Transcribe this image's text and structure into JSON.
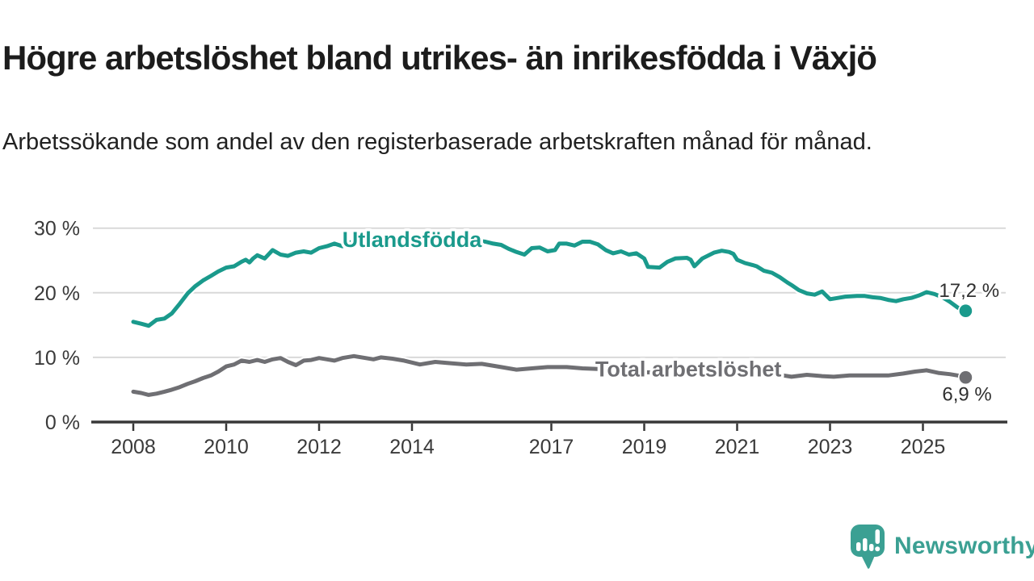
{
  "title": "Högre arbetslöshet bland utrikes- än inrikesfödda i Växjö",
  "subtitle": "Arbetssökande som andel av den registerbaserade arbetskraften månad för månad.",
  "branding": {
    "logo_text": "Newsworthy",
    "logo_color": "#3ba093",
    "logo_icon": "speech-bubble-bar-chart-icon"
  },
  "chart_data": {
    "type": "line",
    "title": "Högre arbetslöshet bland utrikes- än inrikesfödda i Växjö",
    "subtitle": "Arbetssökande som andel av den registerbaserade arbetskraften månad för månad.",
    "unit": "%",
    "x_axis": {
      "tick_labels": [
        "2008",
        "2010",
        "2012",
        "2014",
        "2017",
        "2019",
        "2021",
        "2023",
        "2025"
      ],
      "tick_years": [
        2008,
        2010,
        2012,
        2014,
        2017,
        2019,
        2021,
        2023,
        2025
      ],
      "range_years": [
        2007.1,
        2026.8
      ]
    },
    "y_axis": {
      "tick_labels": [
        "0 %",
        "10 %",
        "20 %",
        "30 %"
      ],
      "tick_values": [
        0,
        10,
        20,
        30
      ],
      "range": [
        0,
        33
      ],
      "grid": true
    },
    "styles": {
      "grid_color": "#d9d9d9",
      "axis_color": "#383838",
      "tick_label_color": "#3a3a3a",
      "value_label_color": "#303030"
    },
    "series": [
      {
        "name": "Utlandsfödda",
        "color": "#1a9a8c",
        "end_value_label": "17,2 %",
        "end_value": 17.2,
        "label_anchor": [
          2014.0,
          28.2
        ],
        "points": [
          [
            2008.0,
            15.5
          ],
          [
            2008.17,
            15.2
          ],
          [
            2008.33,
            14.9
          ],
          [
            2008.5,
            15.8
          ],
          [
            2008.67,
            16.0
          ],
          [
            2008.83,
            16.8
          ],
          [
            2009.0,
            18.3
          ],
          [
            2009.17,
            19.9
          ],
          [
            2009.33,
            21.0
          ],
          [
            2009.5,
            21.9
          ],
          [
            2009.67,
            22.6
          ],
          [
            2009.83,
            23.3
          ],
          [
            2010.0,
            23.9
          ],
          [
            2010.17,
            24.1
          ],
          [
            2010.33,
            24.8
          ],
          [
            2010.42,
            25.1
          ],
          [
            2010.5,
            24.7
          ],
          [
            2010.58,
            25.3
          ],
          [
            2010.67,
            25.8
          ],
          [
            2010.83,
            25.3
          ],
          [
            2011.0,
            26.6
          ],
          [
            2011.17,
            25.9
          ],
          [
            2011.33,
            25.7
          ],
          [
            2011.5,
            26.2
          ],
          [
            2011.67,
            26.4
          ],
          [
            2011.83,
            26.2
          ],
          [
            2012.0,
            26.9
          ],
          [
            2012.17,
            27.2
          ],
          [
            2012.33,
            27.6
          ],
          [
            2012.5,
            27.2
          ],
          [
            2012.67,
            27.8
          ],
          [
            2012.83,
            28.0
          ],
          [
            2013.0,
            28.2
          ],
          [
            2013.25,
            28.0
          ],
          [
            2013.5,
            28.3
          ],
          [
            2013.75,
            28.1
          ],
          [
            2014.0,
            28.2
          ],
          [
            2014.17,
            27.2
          ],
          [
            2014.33,
            27.9
          ],
          [
            2014.58,
            28.2
          ],
          [
            2014.83,
            28.0
          ],
          [
            2015.08,
            28.3
          ],
          [
            2015.33,
            28.1
          ],
          [
            2015.58,
            27.9
          ],
          [
            2015.75,
            27.6
          ],
          [
            2015.92,
            27.4
          ],
          [
            2016.08,
            26.8
          ],
          [
            2016.25,
            26.3
          ],
          [
            2016.42,
            25.9
          ],
          [
            2016.58,
            26.9
          ],
          [
            2016.75,
            27.0
          ],
          [
            2016.92,
            26.4
          ],
          [
            2017.08,
            26.6
          ],
          [
            2017.17,
            27.6
          ],
          [
            2017.33,
            27.6
          ],
          [
            2017.5,
            27.3
          ],
          [
            2017.67,
            27.9
          ],
          [
            2017.83,
            27.9
          ],
          [
            2018.0,
            27.5
          ],
          [
            2018.17,
            26.6
          ],
          [
            2018.33,
            26.1
          ],
          [
            2018.5,
            26.4
          ],
          [
            2018.67,
            25.9
          ],
          [
            2018.83,
            26.1
          ],
          [
            2019.0,
            25.3
          ],
          [
            2019.08,
            24.0
          ],
          [
            2019.33,
            23.9
          ],
          [
            2019.5,
            24.8
          ],
          [
            2019.67,
            25.3
          ],
          [
            2019.92,
            25.4
          ],
          [
            2020.0,
            25.1
          ],
          [
            2020.08,
            24.1
          ],
          [
            2020.25,
            25.3
          ],
          [
            2020.5,
            26.2
          ],
          [
            2020.67,
            26.5
          ],
          [
            2020.83,
            26.3
          ],
          [
            2020.92,
            26.0
          ],
          [
            2021.0,
            25.1
          ],
          [
            2021.17,
            24.6
          ],
          [
            2021.33,
            24.3
          ],
          [
            2021.42,
            24.1
          ],
          [
            2021.58,
            23.4
          ],
          [
            2021.75,
            23.1
          ],
          [
            2021.92,
            22.4
          ],
          [
            2022.08,
            21.6
          ],
          [
            2022.17,
            21.2
          ],
          [
            2022.33,
            20.4
          ],
          [
            2022.5,
            19.9
          ],
          [
            2022.67,
            19.7
          ],
          [
            2022.83,
            20.2
          ],
          [
            2023.0,
            19.0
          ],
          [
            2023.17,
            19.2
          ],
          [
            2023.33,
            19.4
          ],
          [
            2023.58,
            19.5
          ],
          [
            2023.75,
            19.5
          ],
          [
            2023.92,
            19.3
          ],
          [
            2024.08,
            19.2
          ],
          [
            2024.25,
            18.9
          ],
          [
            2024.42,
            18.7
          ],
          [
            2024.58,
            19.0
          ],
          [
            2024.75,
            19.2
          ],
          [
            2024.92,
            19.6
          ],
          [
            2025.08,
            20.1
          ],
          [
            2025.25,
            19.8
          ],
          [
            2025.42,
            19.3
          ],
          [
            2025.58,
            18.6
          ],
          [
            2025.75,
            17.7
          ],
          [
            2025.92,
            17.2
          ]
        ]
      },
      {
        "name": "Total arbetslöshet",
        "color": "#6f6f73",
        "end_value_label": "6,9 %",
        "end_value": 6.9,
        "label_anchor": [
          2019.95,
          8.2
        ],
        "points": [
          [
            2008.0,
            4.7
          ],
          [
            2008.17,
            4.5
          ],
          [
            2008.33,
            4.2
          ],
          [
            2008.5,
            4.4
          ],
          [
            2008.67,
            4.7
          ],
          [
            2008.83,
            5.0
          ],
          [
            2009.0,
            5.4
          ],
          [
            2009.17,
            5.9
          ],
          [
            2009.33,
            6.3
          ],
          [
            2009.5,
            6.8
          ],
          [
            2009.67,
            7.2
          ],
          [
            2009.83,
            7.8
          ],
          [
            2010.0,
            8.6
          ],
          [
            2010.17,
            8.9
          ],
          [
            2010.33,
            9.5
          ],
          [
            2010.5,
            9.3
          ],
          [
            2010.67,
            9.6
          ],
          [
            2010.83,
            9.3
          ],
          [
            2011.0,
            9.7
          ],
          [
            2011.17,
            9.9
          ],
          [
            2011.33,
            9.3
          ],
          [
            2011.5,
            8.8
          ],
          [
            2011.67,
            9.5
          ],
          [
            2011.83,
            9.6
          ],
          [
            2012.0,
            9.9
          ],
          [
            2012.17,
            9.7
          ],
          [
            2012.33,
            9.5
          ],
          [
            2012.5,
            9.9
          ],
          [
            2012.75,
            10.2
          ],
          [
            2013.0,
            9.9
          ],
          [
            2013.17,
            9.7
          ],
          [
            2013.33,
            10.0
          ],
          [
            2013.58,
            9.8
          ],
          [
            2013.83,
            9.5
          ],
          [
            2014.17,
            8.9
          ],
          [
            2014.5,
            9.3
          ],
          [
            2014.83,
            9.1
          ],
          [
            2015.17,
            8.9
          ],
          [
            2015.5,
            9.0
          ],
          [
            2015.92,
            8.5
          ],
          [
            2016.25,
            8.1
          ],
          [
            2016.58,
            8.3
          ],
          [
            2016.92,
            8.5
          ],
          [
            2017.33,
            8.5
          ],
          [
            2017.67,
            8.3
          ],
          [
            2018.0,
            8.2
          ],
          [
            2018.5,
            8.0
          ],
          [
            2019.0,
            7.7
          ],
          [
            2019.5,
            7.6
          ],
          [
            2020.0,
            7.8
          ],
          [
            2020.5,
            8.2
          ],
          [
            2021.0,
            7.9
          ],
          [
            2021.5,
            7.5
          ],
          [
            2022.0,
            7.2
          ],
          [
            2022.17,
            7.0
          ],
          [
            2022.5,
            7.3
          ],
          [
            2022.83,
            7.1
          ],
          [
            2023.08,
            7.0
          ],
          [
            2023.42,
            7.2
          ],
          [
            2023.67,
            7.2
          ],
          [
            2024.0,
            7.2
          ],
          [
            2024.25,
            7.2
          ],
          [
            2024.58,
            7.5
          ],
          [
            2024.83,
            7.8
          ],
          [
            2025.08,
            8.0
          ],
          [
            2025.33,
            7.6
          ],
          [
            2025.58,
            7.4
          ],
          [
            2025.75,
            7.2
          ],
          [
            2025.92,
            6.9
          ]
        ]
      }
    ]
  }
}
